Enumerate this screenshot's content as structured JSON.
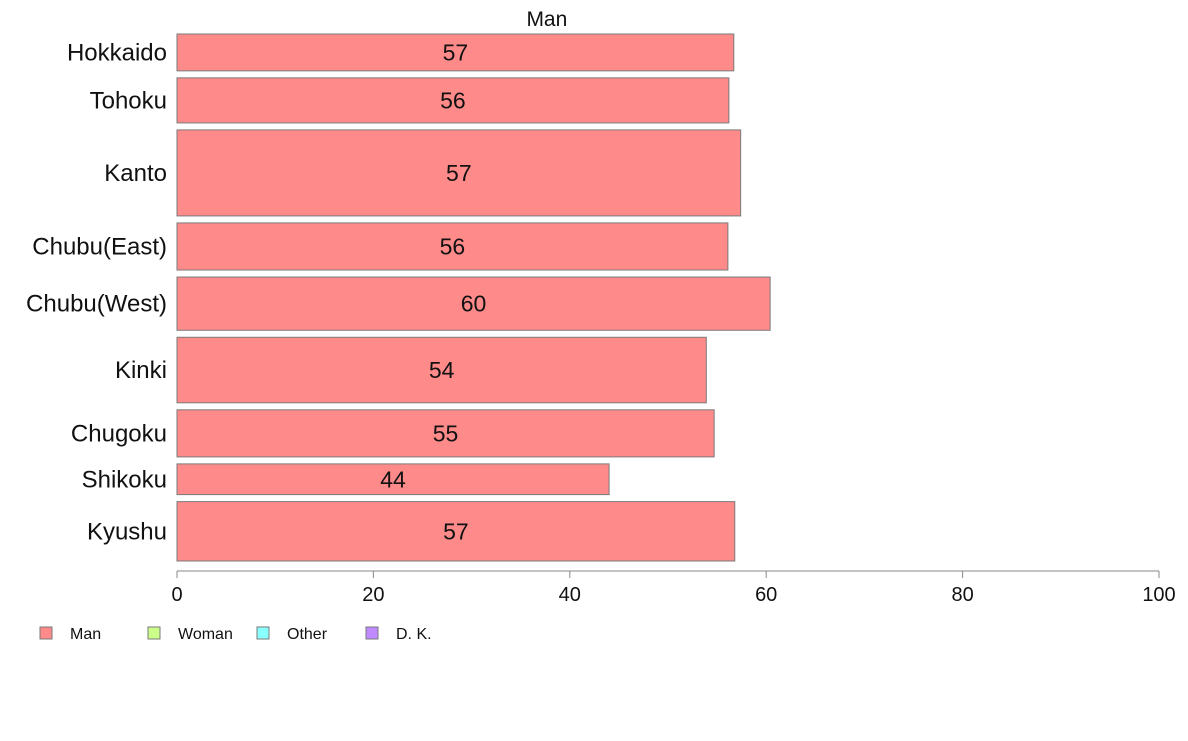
{
  "chart_data": {
    "type": "bar",
    "orientation": "horizontal",
    "panel_title": "Man",
    "categories": [
      "Hokkaido",
      "Tohoku",
      "Kanto",
      "Chubu(East)",
      "Chubu(West)",
      "Kinki",
      "Chugoku",
      "Shikoku",
      "Kyushu"
    ],
    "series": [
      {
        "name": "Man",
        "color": "#ff8a8a",
        "values": [
          56.7,
          56.2,
          57.4,
          56.1,
          60.4,
          53.9,
          54.7,
          44.0,
          56.8
        ],
        "labels": [
          "57",
          "56",
          "57",
          "56",
          "60",
          "54",
          "55",
          "44",
          "57"
        ]
      }
    ],
    "relative_bar_thickness": [
      0.9,
      1.1,
      2.1,
      1.15,
      1.3,
      1.6,
      1.15,
      0.75,
      1.45
    ],
    "xlim": [
      0,
      100
    ],
    "xticks": [
      0,
      20,
      40,
      60,
      80,
      100
    ],
    "xtick_labels": [
      "0",
      "20",
      "40",
      "60",
      "80",
      "100"
    ],
    "grid": false,
    "legend": {
      "placement": "bottom-left",
      "items": [
        {
          "label": "Man",
          "color": "#ff8a8a"
        },
        {
          "label": "Woman",
          "color": "#ccff8a"
        },
        {
          "label": "Other",
          "color": "#8affff"
        },
        {
          "label": "D. K.",
          "color": "#bf8aff"
        }
      ]
    }
  }
}
